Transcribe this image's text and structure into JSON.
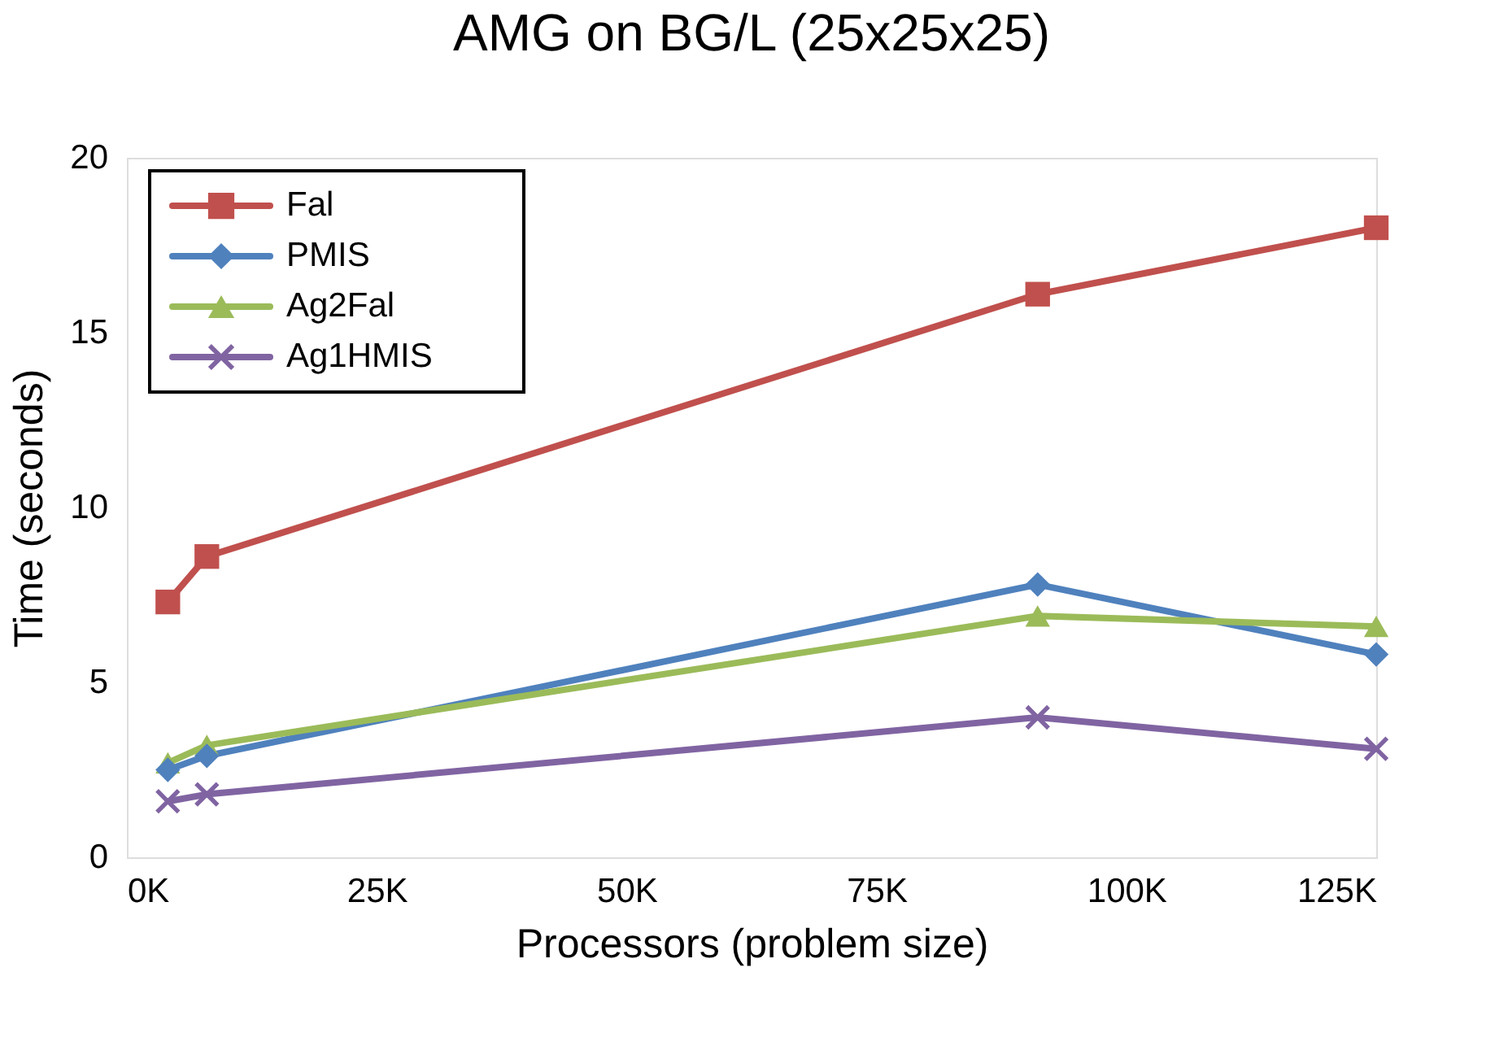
{
  "chart_data": {
    "type": "line",
    "title": "AMG on BG/L (25x25x25)",
    "xlabel": "Processors (problem size)",
    "ylabel": "Time (seconds)",
    "x": [
      4.096,
      8,
      91.125,
      125
    ],
    "series": [
      {
        "name": "Fal",
        "color": "#c0504d",
        "marker": "square",
        "values": [
          7.3,
          8.6,
          16.1,
          18.0
        ]
      },
      {
        "name": "PMIS",
        "color": "#4f81bd",
        "marker": "diamond",
        "values": [
          2.5,
          2.9,
          7.8,
          5.8
        ]
      },
      {
        "name": "Ag2Fal",
        "color": "#9bbb59",
        "marker": "triangle",
        "values": [
          2.7,
          3.2,
          6.9,
          6.6
        ]
      },
      {
        "name": "Ag1HMIS",
        "color": "#8064a2",
        "marker": "cross",
        "values": [
          1.6,
          1.8,
          4.0,
          3.1
        ]
      }
    ],
    "xlim": [
      0,
      125
    ],
    "xticks": [
      {
        "value": 0,
        "label": "0K"
      },
      {
        "value": 25,
        "label": "25K"
      },
      {
        "value": 50,
        "label": "50K"
      },
      {
        "value": 75,
        "label": "75K"
      },
      {
        "value": 100,
        "label": "100K"
      },
      {
        "value": 125,
        "label": "125K"
      }
    ],
    "ylim": [
      0,
      20
    ],
    "yticks": [
      0,
      5,
      10,
      15,
      20
    ],
    "legend": "top left",
    "line_style": "solid"
  }
}
